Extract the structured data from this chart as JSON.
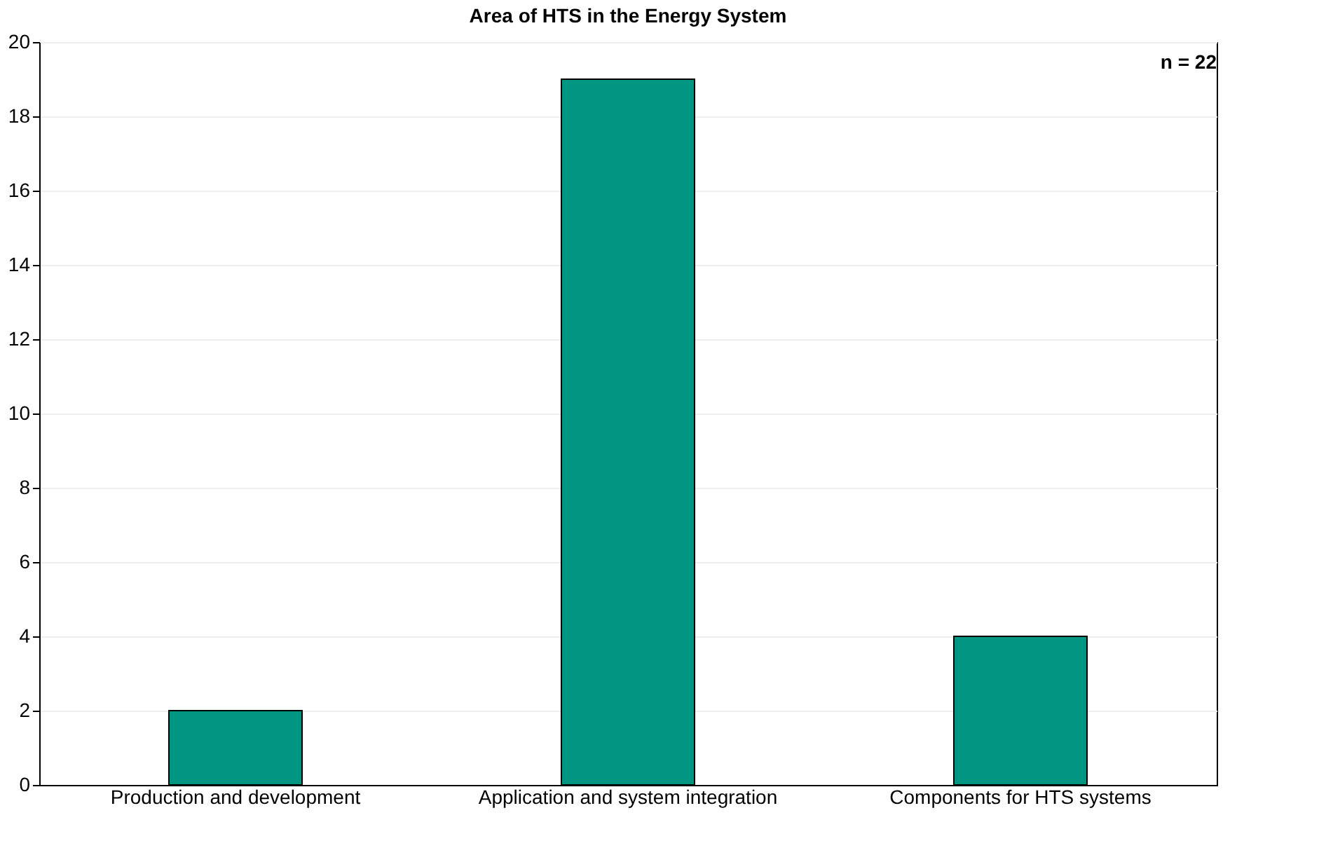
{
  "chart_data": {
    "type": "bar",
    "title": "Area of HTS in the Energy System",
    "categories": [
      "Production and development",
      "Application and system integration",
      "Components for HTS systems"
    ],
    "values": [
      2,
      19,
      4
    ],
    "color": "#009681",
    "ylim": [
      0,
      20
    ],
    "yticks": [
      0,
      2,
      4,
      6,
      8,
      10,
      12,
      14,
      16,
      18,
      20
    ],
    "grid": "y",
    "annotations": [
      "n = 22"
    ]
  }
}
